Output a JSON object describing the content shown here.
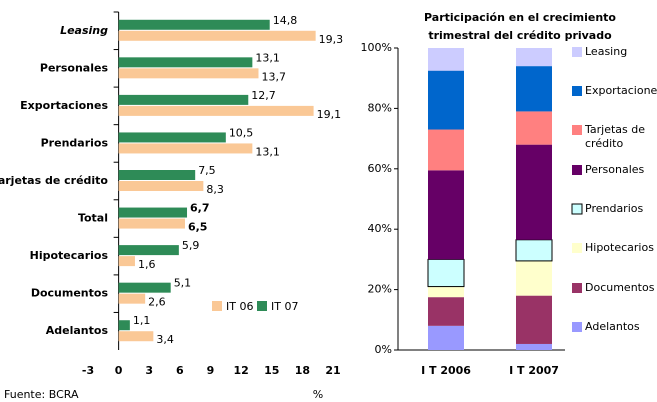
{
  "chart_data": [
    {
      "type": "barh",
      "categories": [
        "Leasing",
        "Personales",
        "Exportaciones",
        "Prendarios",
        "Tarjetas de crédito",
        "Total",
        "Hipotecarios",
        "Documentos",
        "Adelantos"
      ],
      "series": [
        {
          "name": "IT 06",
          "color": "#fac896",
          "values": [
            19.3,
            13.7,
            19.1,
            13.1,
            8.3,
            6.5,
            1.6,
            2.6,
            3.4
          ],
          "value_labels": [
            "19,3",
            "13,7",
            "19,1",
            "13,1",
            "8,3",
            "6,5",
            "1,6",
            "2,6",
            "3,4"
          ]
        },
        {
          "name": "IT 07",
          "color": "#2e8b57",
          "values": [
            14.8,
            13.1,
            12.7,
            10.5,
            7.5,
            6.7,
            5.9,
            5.1,
            1.1
          ],
          "value_labels": [
            "14,8",
            "13,1",
            "12,7",
            "10,5",
            "7,5",
            "6,7",
            "5,9",
            "5,1",
            "1,1"
          ]
        }
      ],
      "xlim": [
        -3,
        21
      ],
      "xticks": [
        -3,
        0,
        3,
        6,
        9,
        12,
        15,
        18,
        21
      ],
      "x_label": "%",
      "source": "Fuente: BCRA"
    },
    {
      "type": "stacked_bar",
      "title": "Participación en el crecimiento trimestral del crédito privado",
      "categories": [
        "I T 2006",
        "I T 2007"
      ],
      "series": [
        {
          "name": "Adelantos",
          "color": "#9999ff",
          "values": [
            8,
            2
          ]
        },
        {
          "name": "Documentos",
          "color": "#993366",
          "values": [
            9.5,
            16
          ]
        },
        {
          "name": "Hipotecarios",
          "color": "#ffffcc",
          "values": [
            3.5,
            11.5
          ]
        },
        {
          "name": "Prendarios",
          "color": "#ccffff",
          "values": [
            9,
            7
          ]
        },
        {
          "name": "Personales",
          "color": "#660066",
          "values": [
            29.5,
            31.5
          ]
        },
        {
          "name": "Tarjetas de crédito",
          "color": "#ff8080",
          "values": [
            13.5,
            11
          ]
        },
        {
          "name": "Exportaciones",
          "color": "#0066cc",
          "values": [
            19.5,
            15
          ]
        },
        {
          "name": "Leasing",
          "color": "#ccccff",
          "values": [
            7.5,
            6
          ]
        }
      ],
      "ylim": [
        0,
        100
      ],
      "yticks": [
        {
          "value": 0,
          "label": "0%"
        },
        {
          "value": 20,
          "label": "20%"
        },
        {
          "value": 40,
          "label": "40%"
        },
        {
          "value": 60,
          "label": "60%"
        },
        {
          "value": 80,
          "label": "80%"
        },
        {
          "value": 100,
          "label": "100%"
        }
      ]
    }
  ]
}
